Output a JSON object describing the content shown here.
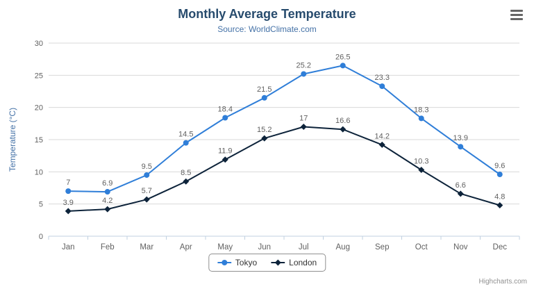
{
  "chart": {
    "credits": "Highcharts.com"
  },
  "menu": {
    "context_icon": "hamburger-menu"
  },
  "chart_data": {
    "type": "line",
    "title": "Monthly Average Temperature",
    "subtitle": "Source: WorldClimate.com",
    "ylabel": "Temperature (°C)",
    "xlabel": "",
    "ylim": [
      0,
      30
    ],
    "yticks": [
      0,
      5,
      10,
      15,
      20,
      25,
      30
    ],
    "grid": true,
    "legend_position": "bottom",
    "categories": [
      "Jan",
      "Feb",
      "Mar",
      "Apr",
      "May",
      "Jun",
      "Jul",
      "Aug",
      "Sep",
      "Oct",
      "Nov",
      "Dec"
    ],
    "series": [
      {
        "name": "Tokyo",
        "color": "#2f7ed8",
        "marker": "circle",
        "values": [
          7,
          6.9,
          9.5,
          14.5,
          18.4,
          21.5,
          25.2,
          26.5,
          23.3,
          18.3,
          13.9,
          9.6
        ]
      },
      {
        "name": "London",
        "color": "#0d233a",
        "marker": "diamond",
        "values": [
          3.9,
          4.2,
          5.7,
          8.5,
          11.9,
          15.2,
          17,
          16.6,
          14.2,
          10.3,
          6.6,
          4.8
        ]
      }
    ],
    "colors": {
      "title": "#274b6d",
      "subtitle": "#4572a7",
      "axis_label": "#606060",
      "data_label": "#606060",
      "grid_line": "#d8d8d8",
      "axis_line": "#c0d0e0"
    }
  }
}
